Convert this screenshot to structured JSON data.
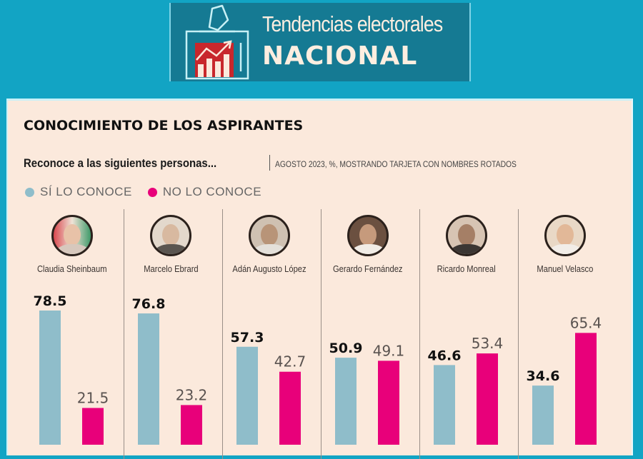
{
  "header": {
    "title": "Tendencias electorales",
    "subtitle": "NACIONAL",
    "logo_icon": "ballot-box-chart-icon"
  },
  "section_title": "CONOCIMIENTO DE LOS ASPIRANTES",
  "question": "Reconoce a las siguientes personas...",
  "note": "AGOSTO 2023, %, MOSTRANDO TARJETA CON NOMBRES ROTADOS",
  "legend": [
    {
      "label": "SÍ LO CONOCE",
      "color": "#8fbdca"
    },
    {
      "label": "NO LO CONOCE",
      "color": "#e8007a"
    }
  ],
  "colors": {
    "background": "#12a4c4",
    "panel": "#fbe9dc",
    "header_box": "#157a93",
    "si": "#8fbdca",
    "no": "#e8007a"
  },
  "chart_data": {
    "type": "bar",
    "title": "CONOCIMIENTO DE LOS ASPIRANTES",
    "subtitle": "Reconoce a las siguientes personas... | AGOSTO 2023, %, MOSTRANDO TARJETA CON NOMBRES ROTADOS",
    "xlabel": "",
    "ylabel": "%",
    "ylim": [
      0,
      100
    ],
    "grid": false,
    "legend_position": "top-left",
    "categories": [
      "Claudia Sheinbaum",
      "Marcelo Ebrard",
      "Adán Augusto López",
      "Gerardo Fernández",
      "Ricardo Monreal",
      "Manuel Velasco"
    ],
    "series": [
      {
        "name": "SÍ LO CONOCE",
        "values": [
          78.5,
          76.8,
          57.3,
          50.9,
          46.6,
          34.6
        ],
        "labels": [
          "78.5",
          "76.8",
          "57.3",
          "50.9",
          "46.6",
          "34.6"
        ]
      },
      {
        "name": "NO LO CONOCE",
        "values": [
          21.5,
          23.2,
          42.7,
          49.1,
          53.4,
          65.4
        ],
        "labels": [
          "21.5",
          "23.2",
          "42.7",
          "49.1",
          "53.4",
          "65.4"
        ]
      }
    ]
  }
}
